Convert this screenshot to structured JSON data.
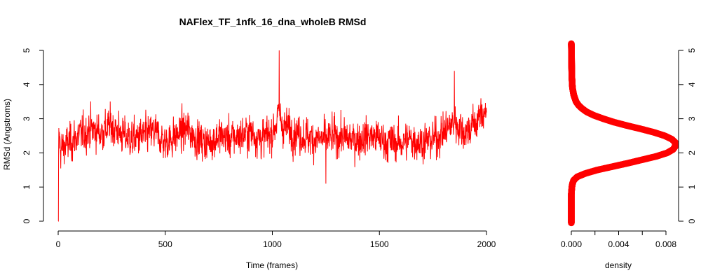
{
  "colors": {
    "series": "#ff0000",
    "axis": "#000000",
    "background": "#ffffff"
  },
  "chart_data": [
    {
      "type": "line",
      "title": "NAFlex_TF_1nfk_16_dna_wholeB RMSd",
      "xlabel": "Time (frames)",
      "ylabel": "RMSd (Angstroms)",
      "xlim": [
        0,
        2000
      ],
      "ylim": [
        0,
        5
      ],
      "x_ticks": [
        "0",
        "500",
        "1000",
        "1500",
        "2000"
      ],
      "y_ticks": [
        "0",
        "1",
        "2",
        "3",
        "4",
        "5"
      ],
      "grid": false,
      "n_frames": 2000,
      "series": [
        {
          "x": [
            0,
            1,
            3,
            10,
            50,
            100,
            150,
            200,
            250,
            300,
            350,
            400,
            450,
            500,
            550,
            600,
            650,
            700,
            750,
            800,
            850,
            900,
            950,
            1000,
            1030,
            1050,
            1100,
            1150,
            1200,
            1250,
            1300,
            1350,
            1400,
            1450,
            1500,
            1550,
            1600,
            1650,
            1700,
            1750,
            1800,
            1850,
            1900,
            1950,
            2000
          ],
          "values": [
            0.0,
            2.0,
            2.6,
            2.1,
            2.3,
            2.5,
            2.7,
            2.6,
            2.8,
            2.5,
            2.4,
            2.5,
            2.6,
            2.3,
            2.5,
            2.7,
            2.4,
            2.3,
            2.5,
            2.4,
            2.5,
            2.6,
            2.4,
            2.6,
            3.1,
            2.8,
            2.6,
            2.5,
            2.4,
            2.4,
            2.5,
            2.4,
            2.4,
            2.5,
            2.4,
            2.3,
            2.3,
            2.4,
            2.3,
            2.4,
            2.6,
            2.9,
            2.6,
            2.9,
            3.3
          ],
          "extremes": [
            {
              "x": 1,
              "value": 0.0
            },
            {
              "x": 1032,
              "value": 5.0
            },
            {
              "x": 1250,
              "value": 1.1
            },
            {
              "x": 1850,
              "value": 4.4
            }
          ]
        }
      ]
    },
    {
      "type": "line",
      "title": "",
      "xlabel": "density",
      "ylabel": "",
      "xlim": [
        0,
        0.0085
      ],
      "ylim": [
        0,
        5
      ],
      "x_ticks": [
        "0.000",
        "0.004",
        "0.008"
      ],
      "y_ticks": [
        "0",
        "1",
        "2",
        "3",
        "4",
        "5"
      ],
      "grid": false,
      "series": [
        {
          "rmsd": [
            -0.05,
            0.2,
            0.5,
            0.8,
            1.0,
            1.1,
            1.2,
            1.3,
            1.4,
            1.5,
            1.6,
            1.7,
            1.8,
            1.9,
            2.0,
            2.1,
            2.2,
            2.3,
            2.4,
            2.5,
            2.6,
            2.7,
            2.8,
            2.9,
            3.0,
            3.1,
            3.2,
            3.3,
            3.4,
            3.5,
            3.6,
            3.7,
            3.8,
            3.9,
            4.0,
            4.2,
            4.5,
            4.8,
            5.0,
            5.2
          ],
          "density": [
            0.0,
            0.0,
            0.0,
            0.0,
            5e-05,
            0.0001,
            0.0002,
            0.0005,
            0.0012,
            0.0022,
            0.0035,
            0.0048,
            0.006,
            0.0072,
            0.0081,
            0.0086,
            0.0088,
            0.0088,
            0.0085,
            0.0079,
            0.007,
            0.0059,
            0.0047,
            0.0036,
            0.0027,
            0.0019,
            0.0013,
            0.0009,
            0.0006,
            0.0004,
            0.0003,
            0.0002,
            0.00015,
            0.0001,
            8e-05,
            5e-05,
            3e-05,
            2e-05,
            1e-05,
            0.0
          ]
        }
      ]
    }
  ]
}
